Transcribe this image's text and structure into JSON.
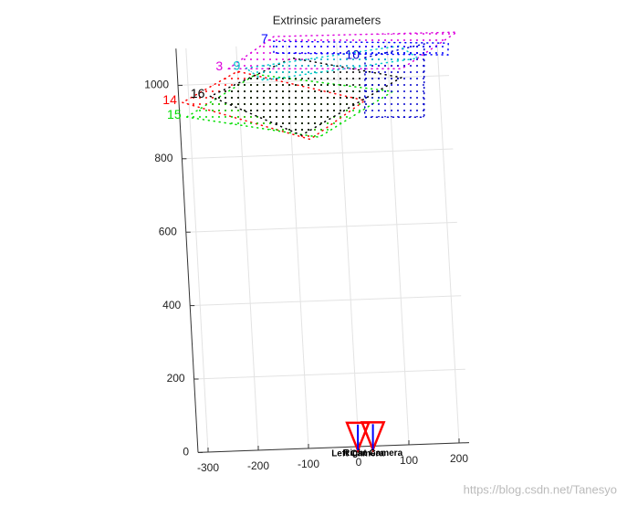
{
  "chart_data": {
    "type": "extrinsics",
    "title": "Extrinsic parameters",
    "xlim": [
      -320,
      220
    ],
    "xticks": [
      -300,
      -200,
      -100,
      0,
      100,
      200
    ],
    "ylim": [
      0,
      1100
    ],
    "yticks": [
      0,
      200,
      400,
      600,
      800,
      1000
    ],
    "grid": true,
    "series": [
      {
        "name": "14",
        "color": "#ff0000",
        "x": [
          -313,
          -63,
          50,
          -200
        ],
        "y": [
          953,
          840,
          940,
          1032
        ]
      },
      {
        "name": "15",
        "color": "#00dd00",
        "x": [
          -306,
          -45,
          106,
          -164
        ],
        "y": [
          913,
          845,
          962,
          1022
        ]
      },
      {
        "name": "16",
        "color": "#000000",
        "x": [
          -257,
          -80,
          125,
          -90
        ],
        "y": [
          967,
          852,
          999,
          1063
        ]
      },
      {
        "name": "3",
        "color": "#dd00dd",
        "x": [
          -218,
          -124,
          240,
          127
        ],
        "y": [
          1040,
          1123,
          1117,
          1023
        ]
      },
      {
        "name": "10",
        "color": "#0000cc",
        "x": [
          55,
          174,
          166,
          48
        ],
        "y": [
          1057,
          1088,
          889,
          895
        ]
      },
      {
        "name": "9",
        "color": "#00cccc",
        "x": [
          -183,
          124,
          160,
          -150
        ],
        "y": [
          1040,
          1085,
          1050,
          1005
        ]
      },
      {
        "name": "7",
        "color": "#0000ff",
        "x": [
          -125,
          222,
          220,
          -126
        ],
        "y": [
          1110,
          1088,
          1056,
          1078
        ]
      }
    ],
    "cameras": [
      {
        "name": "Left Camera",
        "x": 0,
        "y": 40
      },
      {
        "name": "Right Camera",
        "x": 30,
        "y": 40
      }
    ],
    "watermark": "https://blog.csdn.net/Tanesyo"
  }
}
